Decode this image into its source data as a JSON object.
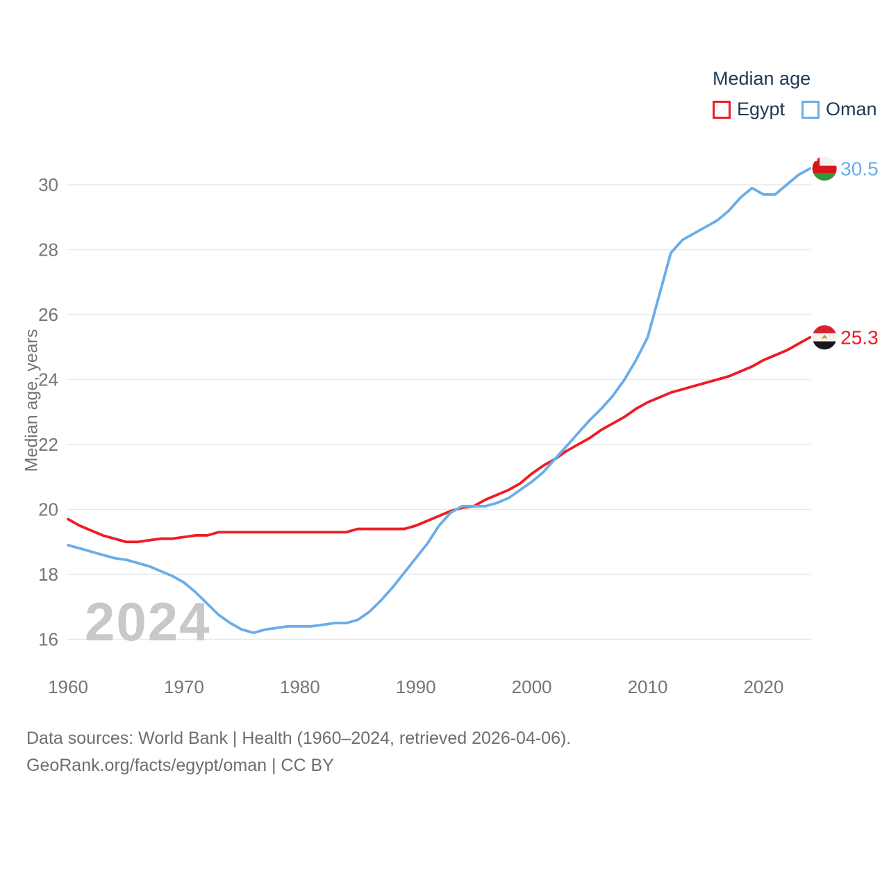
{
  "legend": {
    "title": "Median age",
    "items": [
      {
        "label": "Egypt",
        "color": "#ee1c25"
      },
      {
        "label": "Oman",
        "color": "#6aade9"
      }
    ]
  },
  "footer": {
    "line1": "Data sources: World Bank | Health (1960–2024, retrieved 2026-04-06).",
    "line2": "GeoRank.org/facts/egypt/oman | CC BY"
  },
  "chart_data": {
    "type": "line",
    "title": "Median age",
    "ylabel": "Median age, years",
    "watermark": "2024",
    "grid": "horizontal",
    "legend_position": "top-right",
    "x_range": [
      1960,
      2024
    ],
    "ylim": [
      15.5,
      31
    ],
    "y_ticks": [
      16,
      18,
      20,
      22,
      24,
      26,
      28,
      30
    ],
    "x_ticks": [
      1960,
      1970,
      1980,
      1990,
      2000,
      2010,
      2020
    ],
    "x": [
      1960,
      1961,
      1962,
      1963,
      1964,
      1965,
      1966,
      1967,
      1968,
      1969,
      1970,
      1971,
      1972,
      1973,
      1974,
      1975,
      1976,
      1977,
      1978,
      1979,
      1980,
      1981,
      1982,
      1983,
      1984,
      1985,
      1986,
      1987,
      1988,
      1989,
      1990,
      1991,
      1992,
      1993,
      1994,
      1995,
      1996,
      1997,
      1998,
      1999,
      2000,
      2001,
      2002,
      2003,
      2004,
      2005,
      2006,
      2007,
      2008,
      2009,
      2010,
      2011,
      2012,
      2013,
      2014,
      2015,
      2016,
      2017,
      2018,
      2019,
      2020,
      2021,
      2022,
      2023,
      2024
    ],
    "series": [
      {
        "name": "Egypt",
        "color": "#ee1c25",
        "end_label": "25.3",
        "flag": "egypt",
        "values": [
          19.7,
          19.5,
          19.35,
          19.2,
          19.1,
          19.0,
          19.0,
          19.05,
          19.1,
          19.1,
          19.15,
          19.2,
          19.2,
          19.3,
          19.3,
          19.3,
          19.3,
          19.3,
          19.3,
          19.3,
          19.3,
          19.3,
          19.3,
          19.3,
          19.3,
          19.4,
          19.4,
          19.4,
          19.4,
          19.4,
          19.5,
          19.65,
          19.8,
          19.95,
          20.05,
          20.1,
          20.3,
          20.45,
          20.6,
          20.8,
          21.1,
          21.35,
          21.55,
          21.8,
          22.0,
          22.2,
          22.45,
          22.65,
          22.85,
          23.1,
          23.3,
          23.45,
          23.6,
          23.7,
          23.8,
          23.9,
          24.0,
          24.1,
          24.25,
          24.4,
          24.6,
          24.75,
          24.9,
          25.1,
          25.3
        ]
      },
      {
        "name": "Oman",
        "color": "#6aade9",
        "end_label": "30.5",
        "flag": "oman",
        "values": [
          18.9,
          18.8,
          18.7,
          18.6,
          18.5,
          18.45,
          18.35,
          18.25,
          18.1,
          17.95,
          17.75,
          17.45,
          17.1,
          16.75,
          16.5,
          16.3,
          16.2,
          16.3,
          16.35,
          16.4,
          16.4,
          16.4,
          16.45,
          16.5,
          16.5,
          16.6,
          16.85,
          17.2,
          17.6,
          18.05,
          18.5,
          18.95,
          19.5,
          19.9,
          20.1,
          20.1,
          20.1,
          20.2,
          20.35,
          20.6,
          20.85,
          21.15,
          21.55,
          21.95,
          22.35,
          22.75,
          23.1,
          23.5,
          24.0,
          24.6,
          25.3,
          26.6,
          27.9,
          28.3,
          28.5,
          28.7,
          28.9,
          29.2,
          29.6,
          29.9,
          29.7,
          29.7,
          30.0,
          30.3,
          30.5
        ]
      }
    ]
  }
}
